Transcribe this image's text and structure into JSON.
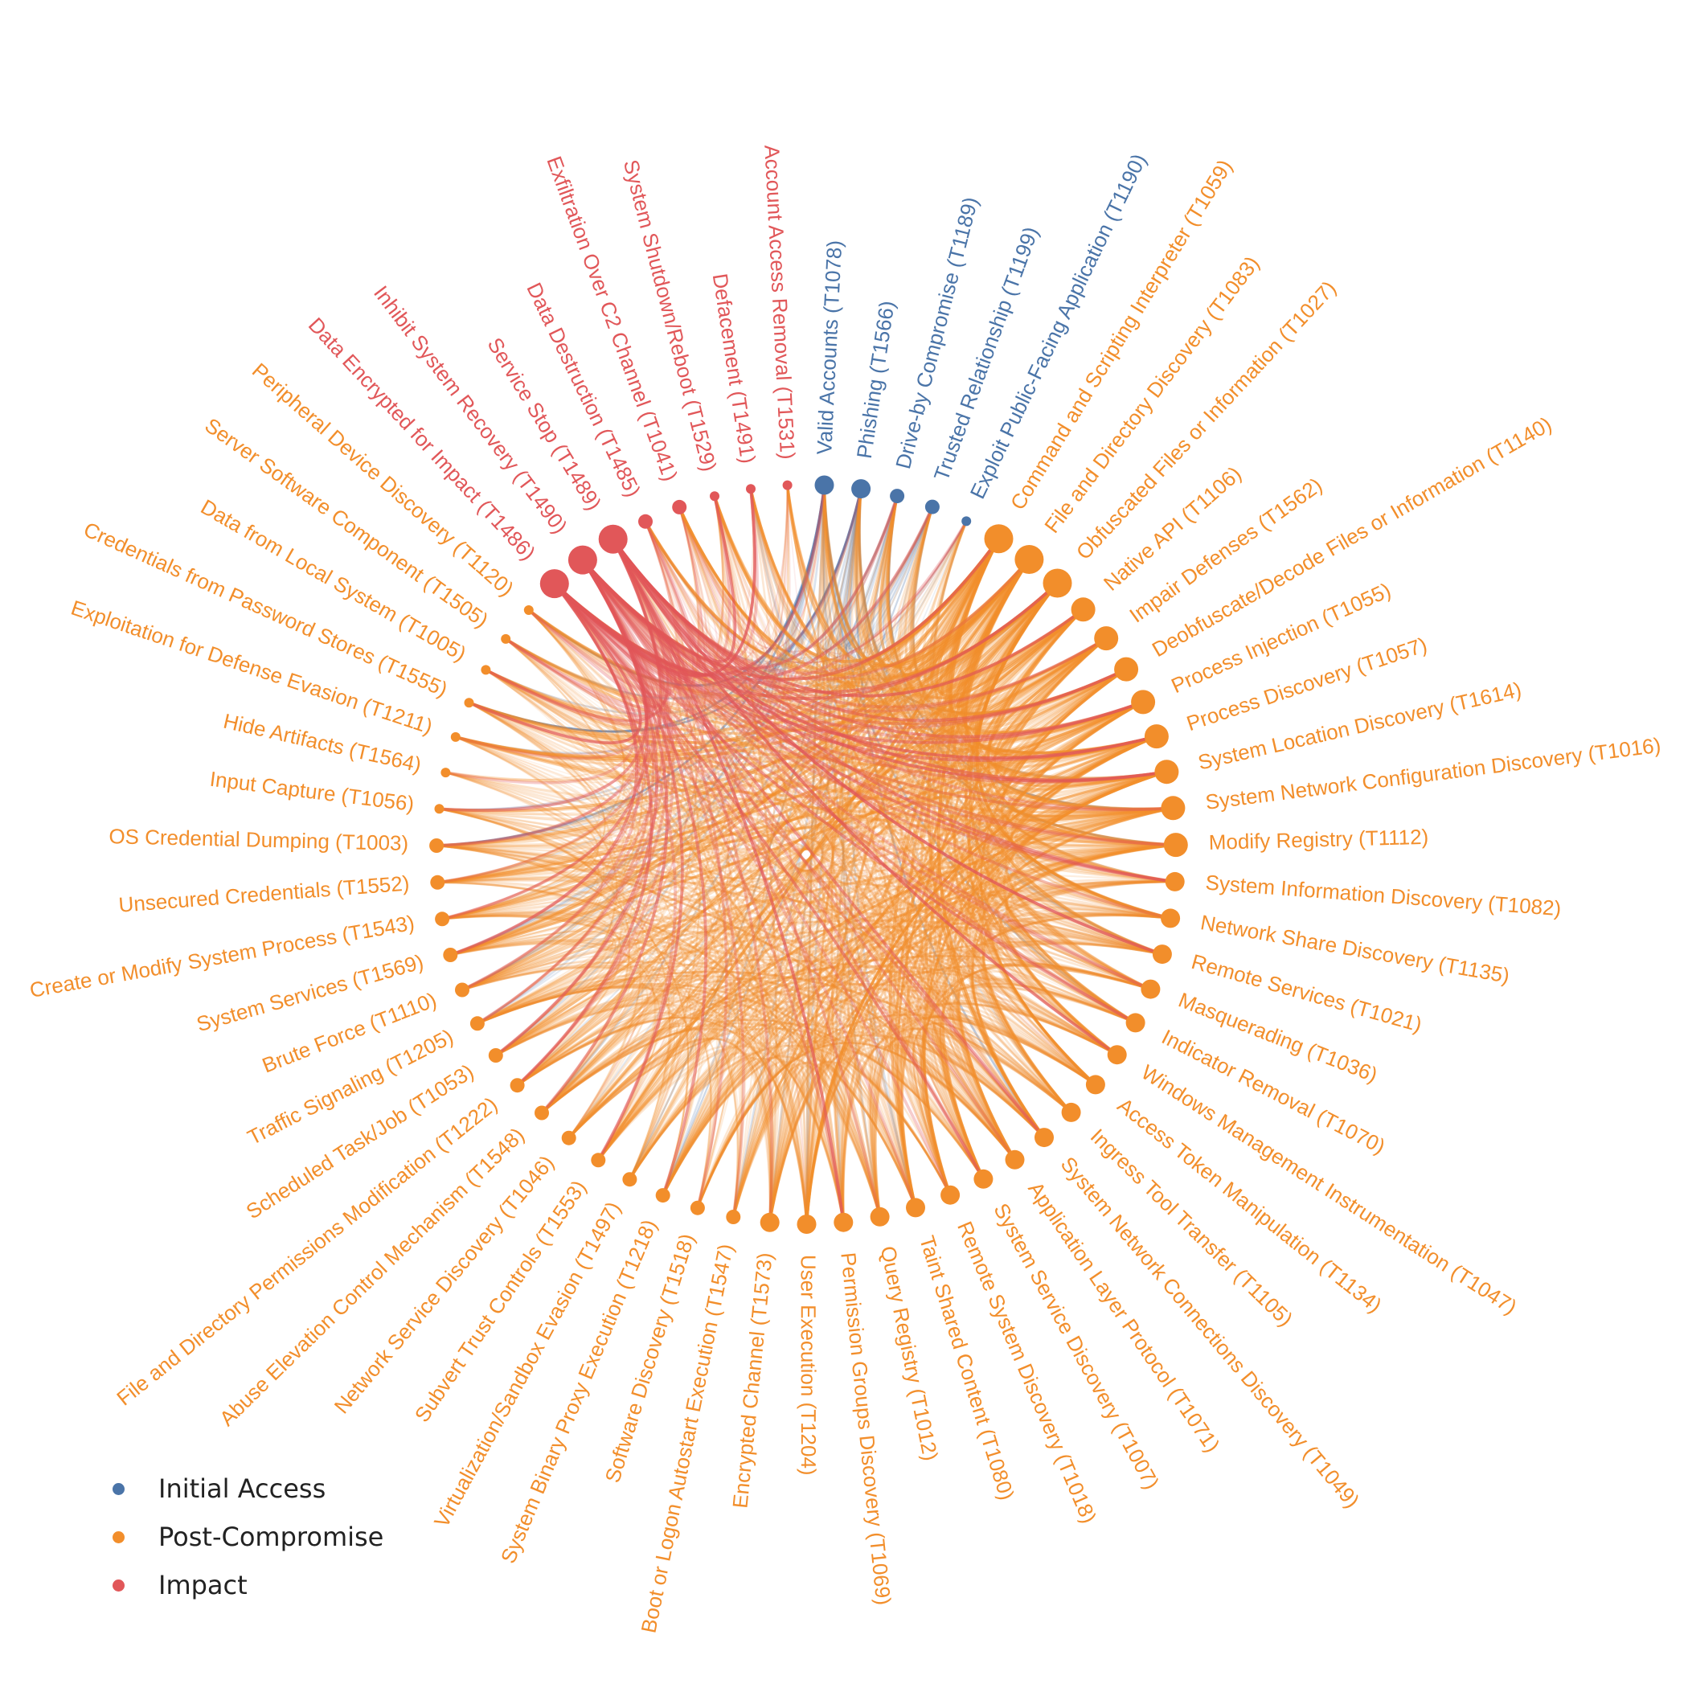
{
  "colors": {
    "initial_access": "#4a74a8",
    "post_compromise": "#f28e2b",
    "impact": "#e15759"
  },
  "legend": [
    {
      "label": "Initial Access",
      "group": "initial_access"
    },
    {
      "label": "Post-Compromise",
      "group": "post_compromise"
    },
    {
      "label": "Impact",
      "group": "impact"
    }
  ],
  "nodes": [
    {
      "label": "Valid Accounts (T1078)",
      "group": "initial_access",
      "weight": 3
    },
    {
      "label": "Phishing (T1566)",
      "group": "initial_access",
      "weight": 3
    },
    {
      "label": "Drive-by Compromise (T1189)",
      "group": "initial_access",
      "weight": 2
    },
    {
      "label": "Trusted Relationship (T1199)",
      "group": "initial_access",
      "weight": 2
    },
    {
      "label": "Exploit Public-Facing Application (T1190)",
      "group": "initial_access",
      "weight": 1
    },
    {
      "label": "Command and Scripting Interpreter (T1059)",
      "group": "post_compromise",
      "weight": 5
    },
    {
      "label": "File and Directory Discovery (T1083)",
      "group": "post_compromise",
      "weight": 5
    },
    {
      "label": "Obfuscated Files or Information (T1027)",
      "group": "post_compromise",
      "weight": 5
    },
    {
      "label": "Native API (T1106)",
      "group": "post_compromise",
      "weight": 4
    },
    {
      "label": "Impair Defenses (T1562)",
      "group": "post_compromise",
      "weight": 4
    },
    {
      "label": "Deobfuscate/Decode Files or Information (T1140)",
      "group": "post_compromise",
      "weight": 4
    },
    {
      "label": "Process Injection (T1055)",
      "group": "post_compromise",
      "weight": 4
    },
    {
      "label": "Process Discovery (T1057)",
      "group": "post_compromise",
      "weight": 4
    },
    {
      "label": "System Location Discovery (T1614)",
      "group": "post_compromise",
      "weight": 4
    },
    {
      "label": "System Network Configuration Discovery (T1016)",
      "group": "post_compromise",
      "weight": 4
    },
    {
      "label": "Modify Registry (T1112)",
      "group": "post_compromise",
      "weight": 4
    },
    {
      "label": "System Information Discovery (T1082)",
      "group": "post_compromise",
      "weight": 3
    },
    {
      "label": "Network Share Discovery (T1135)",
      "group": "post_compromise",
      "weight": 3
    },
    {
      "label": "Remote Services (T1021)",
      "group": "post_compromise",
      "weight": 3
    },
    {
      "label": "Masquerading (T1036)",
      "group": "post_compromise",
      "weight": 3
    },
    {
      "label": "Indicator Removal (T1070)",
      "group": "post_compromise",
      "weight": 3
    },
    {
      "label": "Windows Management Instrumentation (T1047)",
      "group": "post_compromise",
      "weight": 3
    },
    {
      "label": "Access Token Manipulation (T1134)",
      "group": "post_compromise",
      "weight": 3
    },
    {
      "label": "Ingress Tool Transfer (T1105)",
      "group": "post_compromise",
      "weight": 3
    },
    {
      "label": "System Network Connections Discovery (T1049)",
      "group": "post_compromise",
      "weight": 3
    },
    {
      "label": "Application Layer Protocol (T1071)",
      "group": "post_compromise",
      "weight": 3
    },
    {
      "label": "System Service Discovery (T1007)",
      "group": "post_compromise",
      "weight": 3
    },
    {
      "label": "Remote System Discovery (T1018)",
      "group": "post_compromise",
      "weight": 3
    },
    {
      "label": "Taint Shared Content (T1080)",
      "group": "post_compromise",
      "weight": 3
    },
    {
      "label": "Query Registry (T1012)",
      "group": "post_compromise",
      "weight": 3
    },
    {
      "label": "Permission Groups Discovery (T1069)",
      "group": "post_compromise",
      "weight": 3
    },
    {
      "label": "User Execution (T1204)",
      "group": "post_compromise",
      "weight": 3
    },
    {
      "label": "Encrypted Channel (T1573)",
      "group": "post_compromise",
      "weight": 3
    },
    {
      "label": "Boot or Logon Autostart Execution (T1547)",
      "group": "post_compromise",
      "weight": 2
    },
    {
      "label": "Software Discovery (T1518)",
      "group": "post_compromise",
      "weight": 2
    },
    {
      "label": "System Binary Proxy Execution (T1218)",
      "group": "post_compromise",
      "weight": 2
    },
    {
      "label": "Virtualization/Sandbox Evasion (T1497)",
      "group": "post_compromise",
      "weight": 2
    },
    {
      "label": "Subvert Trust Controls (T1553)",
      "group": "post_compromise",
      "weight": 2
    },
    {
      "label": "Network Service Discovery (T1046)",
      "group": "post_compromise",
      "weight": 2
    },
    {
      "label": "Abuse Elevation Control Mechanism (T1548)",
      "group": "post_compromise",
      "weight": 2
    },
    {
      "label": "File and Directory Permissions Modification (T1222)",
      "group": "post_compromise",
      "weight": 2
    },
    {
      "label": "Scheduled Task/Job (T1053)",
      "group": "post_compromise",
      "weight": 2
    },
    {
      "label": "Traffic Signaling (T1205)",
      "group": "post_compromise",
      "weight": 2
    },
    {
      "label": "Brute Force (T1110)",
      "group": "post_compromise",
      "weight": 2
    },
    {
      "label": "System Services (T1569)",
      "group": "post_compromise",
      "weight": 2
    },
    {
      "label": "Create or Modify System Process (T1543)",
      "group": "post_compromise",
      "weight": 2
    },
    {
      "label": "Unsecured Credentials (T1552)",
      "group": "post_compromise",
      "weight": 2
    },
    {
      "label": "OS Credential Dumping (T1003)",
      "group": "post_compromise",
      "weight": 2
    },
    {
      "label": "Input Capture (T1056)",
      "group": "post_compromise",
      "weight": 1
    },
    {
      "label": "Hide Artifacts (T1564)",
      "group": "post_compromise",
      "weight": 1
    },
    {
      "label": "Exploitation for Defense Evasion (T1211)",
      "group": "post_compromise",
      "weight": 1
    },
    {
      "label": "Credentials from Password Stores (T1555)",
      "group": "post_compromise",
      "weight": 1
    },
    {
      "label": "Data from Local System (T1005)",
      "group": "post_compromise",
      "weight": 1
    },
    {
      "label": "Server Software Component (T1505)",
      "group": "post_compromise",
      "weight": 1
    },
    {
      "label": "Peripheral Device Discovery (T1120)",
      "group": "post_compromise",
      "weight": 1
    },
    {
      "label": "Data Encrypted for Impact (T1486)",
      "group": "impact",
      "weight": 5
    },
    {
      "label": "Inhibit System Recovery (T1490)",
      "group": "impact",
      "weight": 5
    },
    {
      "label": "Service Stop (T1489)",
      "group": "impact",
      "weight": 5
    },
    {
      "label": "Data Destruction (T1485)",
      "group": "impact",
      "weight": 2
    },
    {
      "label": "Exfiltration Over C2 Channel (T1041)",
      "group": "impact",
      "weight": 2
    },
    {
      "label": "System Shutdown/Reboot (T1529)",
      "group": "impact",
      "weight": 1
    },
    {
      "label": "Defacement (T1491)",
      "group": "impact",
      "weight": 1
    },
    {
      "label": "Account Access Removal (T1531)",
      "group": "impact",
      "weight": 1
    }
  ]
}
